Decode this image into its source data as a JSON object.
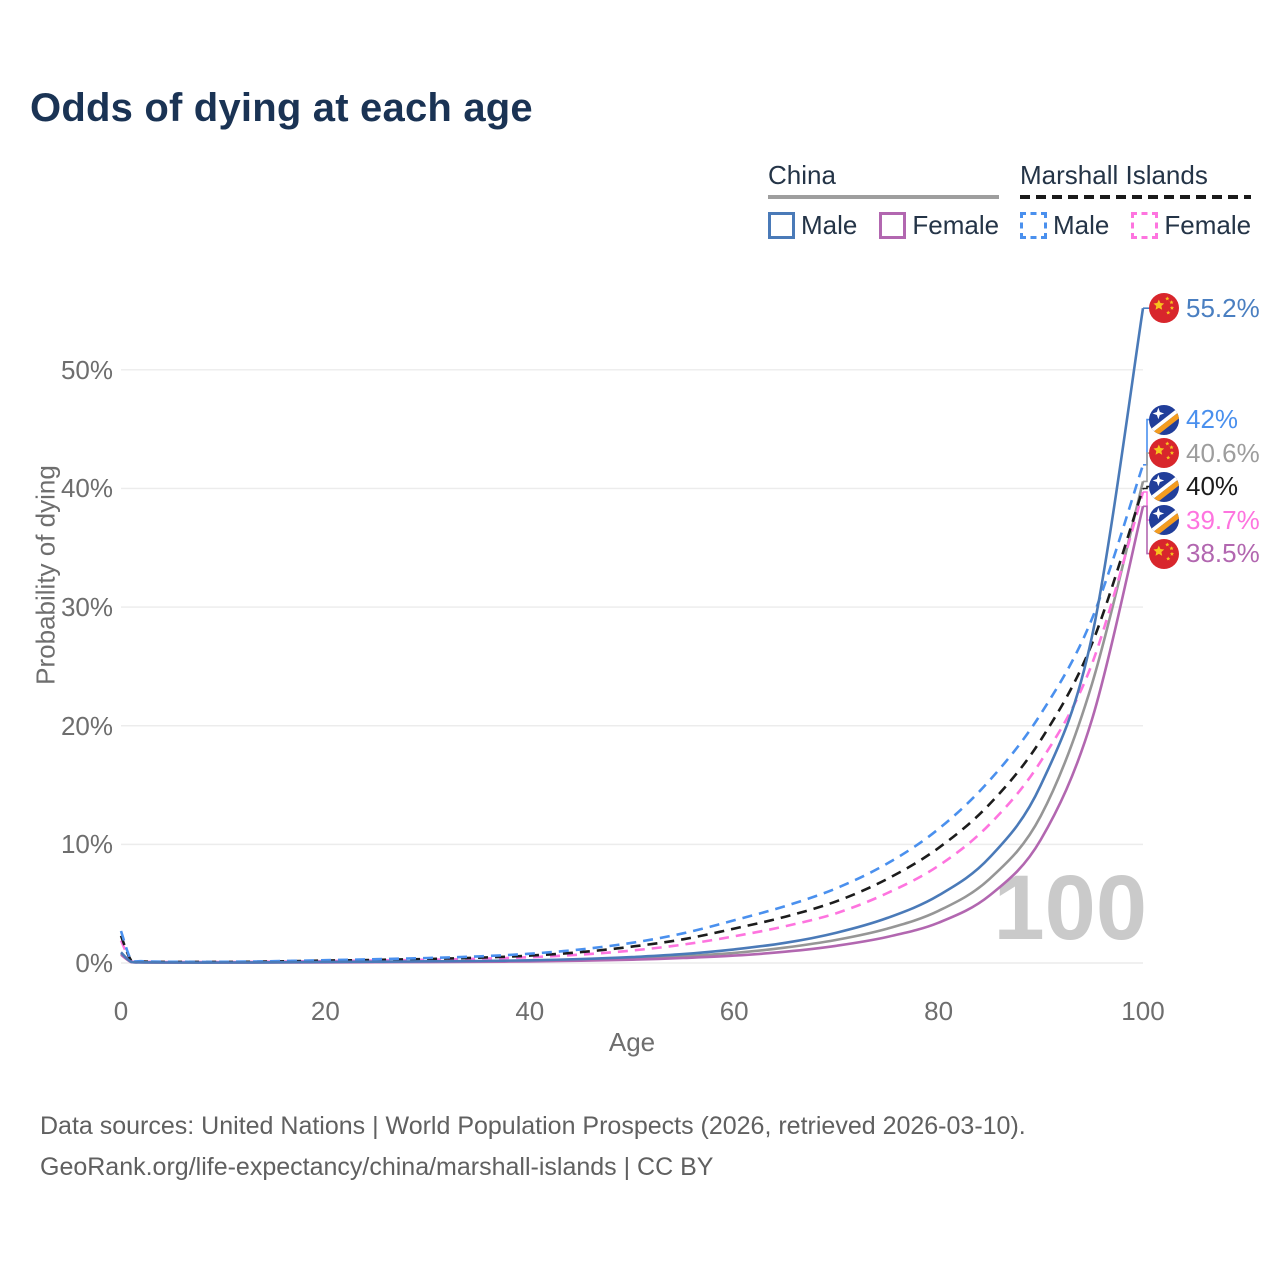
{
  "title": "Odds of dying at each age",
  "legend": {
    "groups": [
      {
        "label": "China",
        "style": "solid",
        "underline_color": "#9e9e9e",
        "items": [
          {
            "label": "Male",
            "color": "#4a7ab8",
            "dashed": false
          },
          {
            "label": "Female",
            "color": "#b267b0",
            "dashed": false
          }
        ]
      },
      {
        "label": "Marshall Islands",
        "style": "dashed",
        "underline_color": "#1a1a1a",
        "items": [
          {
            "label": "Male",
            "color": "#4a90ee",
            "dashed": true
          },
          {
            "label": "Female",
            "color": "#fe74df",
            "dashed": true
          }
        ]
      }
    ]
  },
  "chart_data": {
    "type": "line",
    "title": "Odds of dying at each age",
    "xlabel": "Age",
    "ylabel": "Probability of dying",
    "x_tick_values": [
      0,
      20,
      40,
      60,
      80,
      100
    ],
    "y_tick_values": [
      0,
      10,
      20,
      30,
      40,
      50
    ],
    "y_tick_labels": [
      "0%",
      "10%",
      "20%",
      "30%",
      "40%",
      "50%"
    ],
    "xlim": [
      0,
      100
    ],
    "ylim_pct": [
      0,
      57
    ],
    "grid": "horizontal",
    "legend_position": "top-right",
    "watermark": "100",
    "x_ages": [
      0,
      1,
      2,
      5,
      10,
      15,
      20,
      25,
      30,
      35,
      40,
      45,
      50,
      55,
      60,
      65,
      70,
      75,
      80,
      85,
      90,
      95,
      100
    ],
    "series": [
      {
        "name": "China Both sexes",
        "country": "China",
        "sex": "Both",
        "color": "#969696",
        "dashed": false,
        "values": [
          0.8,
          0.09,
          0.055,
          0.035,
          0.035,
          0.05,
          0.07,
          0.09,
          0.11,
          0.13,
          0.18,
          0.25,
          0.38,
          0.57,
          0.85,
          1.3,
          1.95,
          2.9,
          4.4,
          7.1,
          12.4,
          23.5,
          40.6
        ]
      },
      {
        "name": "China Female",
        "country": "China",
        "sex": "Female",
        "color": "#b267b0",
        "dashed": false,
        "values": [
          0.7,
          0.08,
          0.05,
          0.03,
          0.03,
          0.04,
          0.05,
          0.07,
          0.08,
          0.1,
          0.13,
          0.19,
          0.28,
          0.42,
          0.62,
          0.95,
          1.45,
          2.2,
          3.4,
          5.7,
          10.4,
          20.5,
          38.5
        ]
      },
      {
        "name": "Marshall Islands Female",
        "country": "Marshall Islands",
        "sex": "Female",
        "color": "#fe74df",
        "dashed": true,
        "values": [
          1.9,
          0.17,
          0.11,
          0.08,
          0.08,
          0.11,
          0.16,
          0.21,
          0.27,
          0.36,
          0.49,
          0.71,
          1.05,
          1.55,
          2.25,
          3.1,
          4.2,
          5.9,
          8.2,
          11.7,
          17.0,
          25.2,
          39.7
        ]
      },
      {
        "name": "Marshall Islands Both sexes",
        "country": "Marshall Islands",
        "sex": "Both",
        "color": "#1c1c1c",
        "dashed": true,
        "values": [
          2.3,
          0.21,
          0.13,
          0.09,
          0.09,
          0.13,
          0.2,
          0.26,
          0.34,
          0.45,
          0.62,
          0.92,
          1.38,
          2.0,
          2.9,
          3.9,
          5.2,
          7.1,
          9.7,
          13.4,
          18.8,
          26.9,
          40.0
        ]
      },
      {
        "name": "Marshall Islands Male",
        "country": "Marshall Islands",
        "sex": "Male",
        "color": "#4a90ee",
        "dashed": true,
        "values": [
          2.7,
          0.25,
          0.15,
          0.1,
          0.1,
          0.15,
          0.24,
          0.32,
          0.42,
          0.56,
          0.78,
          1.15,
          1.7,
          2.5,
          3.6,
          4.8,
          6.3,
          8.4,
          11.3,
          15.4,
          21.0,
          29.0,
          42.0
        ]
      },
      {
        "name": "China Male",
        "country": "China",
        "sex": "Male",
        "color": "#4a7ab8",
        "dashed": false,
        "values": [
          0.9,
          0.1,
          0.06,
          0.04,
          0.04,
          0.06,
          0.09,
          0.11,
          0.14,
          0.17,
          0.23,
          0.33,
          0.5,
          0.75,
          1.15,
          1.7,
          2.55,
          3.8,
          5.7,
          8.9,
          15.0,
          27.5,
          55.2
        ]
      }
    ],
    "end_labels": [
      {
        "text": "55.2%",
        "value": 55.2,
        "flag": "cn",
        "color": "#4a7fc1",
        "series": "China Male"
      },
      {
        "text": "42%",
        "value": 42,
        "flag": "mh",
        "color": "#4a90ee",
        "series": "Marshall Islands Male"
      },
      {
        "text": "40.6%",
        "value": 40.6,
        "flag": "cn",
        "color": "#9d9d9d",
        "series": "China Both sexes"
      },
      {
        "text": "40%",
        "value": 40,
        "flag": "mh",
        "color": "#1c1c1c",
        "series": "Marshall Islands Both sexes"
      },
      {
        "text": "39.7%",
        "value": 39.7,
        "flag": "mh",
        "color": "#fe74df",
        "series": "Marshall Islands Female"
      },
      {
        "text": "38.5%",
        "value": 38.5,
        "flag": "cn",
        "color": "#b267b0",
        "series": "China Female"
      }
    ]
  },
  "footer": {
    "line1": "Data sources: United Nations | World Population Prospects (2026, retrieved 2026-03-10).",
    "line2": "GeoRank.org/life-expectancy/china/marshall-islands | CC BY"
  }
}
